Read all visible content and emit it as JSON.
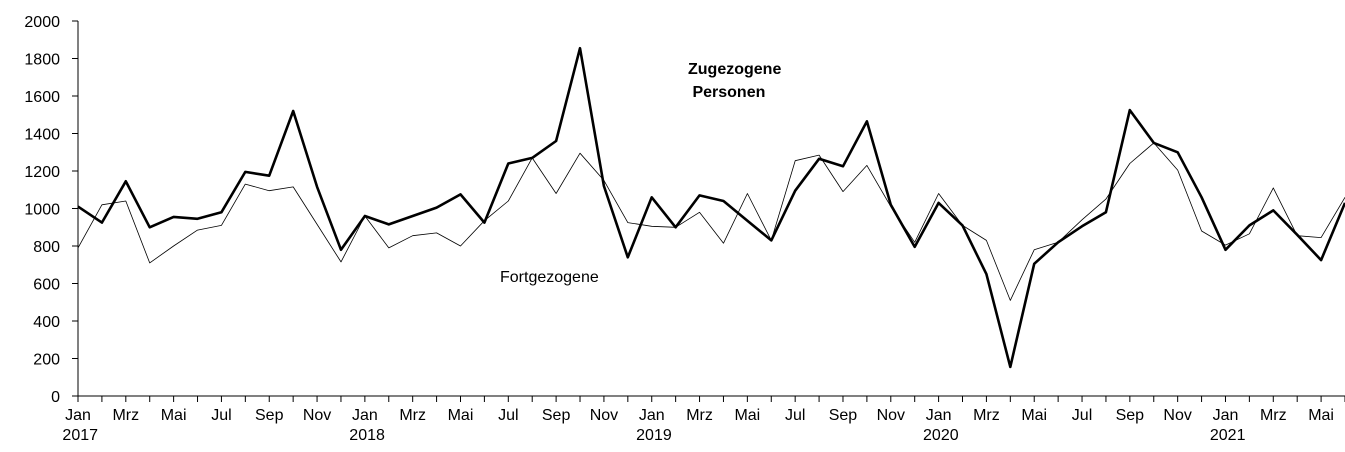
{
  "chart_data": {
    "type": "line",
    "categories": [
      "Jan 2017",
      null,
      "Mrz",
      null,
      "Mai",
      null,
      "Jul",
      null,
      "Sep",
      null,
      "Nov",
      null,
      "Jan 2018",
      null,
      "Mrz",
      null,
      "Mai",
      null,
      "Jul",
      null,
      "Sep",
      null,
      "Nov",
      null,
      "Jan 2019",
      null,
      "Mrz",
      null,
      "Mai",
      null,
      "Jul",
      null,
      "Sep",
      null,
      "Nov",
      null,
      "Jan 2020",
      null,
      "Mrz",
      null,
      "Mai",
      null,
      "Jul",
      null,
      "Sep",
      null,
      "Nov",
      null,
      "Jan 2021",
      null,
      "Mrz",
      null,
      "Mai",
      null
    ],
    "series": [
      {
        "name": "Zugezogene Personen",
        "color": "#000000",
        "width": 2.6,
        "values": [
          1010,
          925,
          1145,
          900,
          955,
          945,
          980,
          1195,
          1175,
          1520,
          1115,
          780,
          960,
          915,
          960,
          1005,
          1075,
          925,
          1240,
          1270,
          1360,
          1855,
          1120,
          740,
          1060,
          900,
          1070,
          1040,
          935,
          830,
          1095,
          1265,
          1225,
          1465,
          1020,
          795,
          1030,
          910,
          650,
          155,
          705,
          820,
          905,
          980,
          1525,
          1350,
          1300,
          1060,
          780,
          910,
          990,
          860,
          725,
          1030
        ]
      },
      {
        "name": "Fortgezogene",
        "color": "#000000",
        "width": 0.8,
        "values": [
          790,
          1020,
          1040,
          710,
          800,
          885,
          910,
          1130,
          1095,
          1115,
          915,
          715,
          960,
          790,
          855,
          870,
          800,
          935,
          1040,
          1270,
          1080,
          1295,
          1150,
          925,
          905,
          900,
          980,
          815,
          1080,
          830,
          1255,
          1285,
          1090,
          1230,
          1010,
          820,
          1080,
          910,
          830,
          510,
          780,
          820,
          940,
          1050,
          1240,
          1350,
          1205,
          880,
          805,
          865,
          1110,
          855,
          845,
          1060
        ]
      }
    ],
    "ylim": [
      0,
      2000
    ],
    "yticks": [
      0,
      200,
      400,
      600,
      800,
      1000,
      1200,
      1400,
      1600,
      1800,
      2000
    ],
    "grid": false
  }
}
